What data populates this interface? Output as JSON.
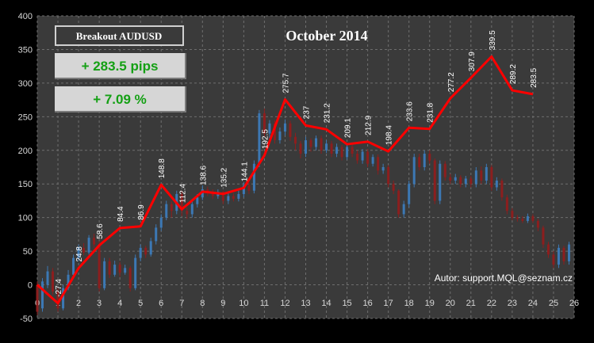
{
  "panel": {
    "label": "Breakout AUDUSD",
    "pips": "+ 283.5 pips",
    "percent": "+ 7.09 %"
  },
  "author_text": "Autor:  support.MQL@seznam.cz",
  "colors": {
    "background": "#000000",
    "plot_area": "#3a3a3a",
    "grid": "#6e6e6e",
    "line": "#ff0000",
    "bull_candle": "#3c78b4",
    "bear_candle": "#8c1e1e",
    "value_text": "#14a014"
  },
  "chart_data": {
    "type": "line",
    "title": "October 2014",
    "xlabel": "",
    "ylabel": "",
    "xlim": [
      0,
      26
    ],
    "ylim": [
      -50,
      400
    ],
    "x_ticks": [
      0,
      1,
      2,
      3,
      4,
      5,
      6,
      7,
      8,
      9,
      10,
      11,
      12,
      13,
      14,
      15,
      16,
      17,
      18,
      19,
      20,
      21,
      22,
      23,
      24,
      25,
      26
    ],
    "y_ticks": [
      -50,
      0,
      50,
      100,
      150,
      200,
      250,
      300,
      350,
      400
    ],
    "grid": true,
    "legend": "none",
    "series": [
      {
        "x": [
          0,
          1,
          2,
          3,
          4,
          5,
          6,
          7,
          8,
          9,
          10,
          11,
          12,
          13,
          14,
          15,
          16,
          17,
          18,
          19,
          20,
          21,
          22,
          23,
          24
        ],
        "values": [
          0,
          -27.4,
          24.8,
          58.6,
          84.4,
          86.9,
          148.8,
          112.4,
          138.6,
          135.2,
          144.1,
          192.5,
          275.7,
          237,
          231.2,
          209.1,
          212.9,
          198.4,
          233.6,
          231.8,
          277.2,
          307.9,
          339.5,
          289.2,
          283.5
        ],
        "labels": [
          "",
          "-27.4",
          "24.8",
          "58.6",
          "84.4",
          "86.9",
          "148.8",
          "112.4",
          "138.6",
          "135.2",
          "144.1",
          "192.5",
          "275.7",
          "237",
          "231.2",
          "209.1",
          "212.9",
          "198.4",
          "233.6",
          "231.8",
          "277.2",
          "307.9",
          "339.5",
          "289.2",
          "283.5"
        ]
      }
    ],
    "candles": [
      {
        "x": 0.0,
        "o": 0,
        "c": -40,
        "h": 5,
        "l": -45
      },
      {
        "x": 0.25,
        "o": -35,
        "c": 5,
        "h": 10,
        "l": -40
      },
      {
        "x": 0.5,
        "o": 0,
        "c": 20,
        "h": 28,
        "l": -5
      },
      {
        "x": 0.75,
        "o": 20,
        "c": -10,
        "h": 25,
        "l": -15
      },
      {
        "x": 1.0,
        "o": -10,
        "c": -35,
        "h": -5,
        "l": -40
      },
      {
        "x": 1.25,
        "o": -35,
        "c": -5,
        "h": 0,
        "l": -38
      },
      {
        "x": 1.5,
        "o": -5,
        "c": 15,
        "h": 22,
        "l": -8
      },
      {
        "x": 1.75,
        "o": 15,
        "c": 40,
        "h": 45,
        "l": 12
      },
      {
        "x": 2.0,
        "o": 40,
        "c": 55,
        "h": 60,
        "l": 35
      },
      {
        "x": 2.25,
        "o": 55,
        "c": 48,
        "h": 62,
        "l": 44
      },
      {
        "x": 2.5,
        "o": 48,
        "c": 70,
        "h": 74,
        "l": 45
      },
      {
        "x": 2.75,
        "o": 70,
        "c": 60,
        "h": 76,
        "l": 55
      },
      {
        "x": 3.0,
        "o": 60,
        "c": -5,
        "h": 65,
        "l": -10
      },
      {
        "x": 3.25,
        "o": -5,
        "c": 35,
        "h": 40,
        "l": -8
      },
      {
        "x": 3.5,
        "o": 35,
        "c": 15,
        "h": 40,
        "l": 10
      },
      {
        "x": 3.75,
        "o": 15,
        "c": 30,
        "h": 36,
        "l": 12
      },
      {
        "x": 4.0,
        "o": 30,
        "c": 18,
        "h": 34,
        "l": 12
      },
      {
        "x": 4.25,
        "o": 18,
        "c": 25,
        "h": 30,
        "l": 15
      },
      {
        "x": 4.5,
        "o": 25,
        "c": -5,
        "h": 28,
        "l": -10
      },
      {
        "x": 4.75,
        "o": -5,
        "c": 40,
        "h": 45,
        "l": -8
      },
      {
        "x": 5.0,
        "o": 40,
        "c": 55,
        "h": 60,
        "l": 35
      },
      {
        "x": 5.25,
        "o": 55,
        "c": 45,
        "h": 58,
        "l": 40
      },
      {
        "x": 5.5,
        "o": 45,
        "c": 65,
        "h": 70,
        "l": 42
      },
      {
        "x": 5.75,
        "o": 65,
        "c": 85,
        "h": 90,
        "l": 60
      },
      {
        "x": 6.0,
        "o": 85,
        "c": 100,
        "h": 105,
        "l": 80
      },
      {
        "x": 6.25,
        "o": 100,
        "c": 120,
        "h": 125,
        "l": 96
      },
      {
        "x": 6.5,
        "o": 120,
        "c": 110,
        "h": 124,
        "l": 100
      },
      {
        "x": 6.75,
        "o": 110,
        "c": 135,
        "h": 140,
        "l": 105
      },
      {
        "x": 7.0,
        "o": 135,
        "c": 110,
        "h": 140,
        "l": 102
      },
      {
        "x": 7.25,
        "o": 110,
        "c": 105,
        "h": 115,
        "l": 98
      },
      {
        "x": 7.5,
        "o": 105,
        "c": 120,
        "h": 125,
        "l": 100
      },
      {
        "x": 7.75,
        "o": 120,
        "c": 130,
        "h": 135,
        "l": 115
      },
      {
        "x": 8.0,
        "o": 130,
        "c": 142,
        "h": 148,
        "l": 126
      },
      {
        "x": 8.25,
        "o": 142,
        "c": 138,
        "h": 146,
        "l": 132
      },
      {
        "x": 8.5,
        "o": 138,
        "c": 132,
        "h": 142,
        "l": 128
      },
      {
        "x": 8.75,
        "o": 132,
        "c": 138,
        "h": 142,
        "l": 128
      },
      {
        "x": 9.0,
        "o": 138,
        "c": 125,
        "h": 140,
        "l": 120
      },
      {
        "x": 9.25,
        "o": 125,
        "c": 132,
        "h": 136,
        "l": 120
      },
      {
        "x": 9.5,
        "o": 132,
        "c": 128,
        "h": 136,
        "l": 124
      },
      {
        "x": 9.75,
        "o": 128,
        "c": 135,
        "h": 140,
        "l": 124
      },
      {
        "x": 10.0,
        "o": 135,
        "c": 148,
        "h": 152,
        "l": 130
      },
      {
        "x": 10.25,
        "o": 148,
        "c": 140,
        "h": 152,
        "l": 135
      },
      {
        "x": 10.5,
        "o": 140,
        "c": 180,
        "h": 185,
        "l": 136
      },
      {
        "x": 10.75,
        "o": 180,
        "c": 255,
        "h": 260,
        "l": 175
      },
      {
        "x": 11.0,
        "o": 255,
        "c": 225,
        "h": 262,
        "l": 220
      },
      {
        "x": 11.25,
        "o": 225,
        "c": 240,
        "h": 245,
        "l": 218
      },
      {
        "x": 11.5,
        "o": 240,
        "c": 215,
        "h": 245,
        "l": 210
      },
      {
        "x": 11.75,
        "o": 215,
        "c": 228,
        "h": 234,
        "l": 210
      },
      {
        "x": 12.0,
        "o": 228,
        "c": 240,
        "h": 246,
        "l": 222
      },
      {
        "x": 12.25,
        "o": 240,
        "c": 220,
        "h": 244,
        "l": 214
      },
      {
        "x": 12.5,
        "o": 220,
        "c": 210,
        "h": 226,
        "l": 200
      },
      {
        "x": 12.75,
        "o": 210,
        "c": 195,
        "h": 214,
        "l": 188
      },
      {
        "x": 13.0,
        "o": 195,
        "c": 215,
        "h": 220,
        "l": 190
      },
      {
        "x": 13.25,
        "o": 215,
        "c": 205,
        "h": 218,
        "l": 198
      },
      {
        "x": 13.5,
        "o": 205,
        "c": 218,
        "h": 222,
        "l": 200
      },
      {
        "x": 13.75,
        "o": 218,
        "c": 200,
        "h": 222,
        "l": 195
      },
      {
        "x": 14.0,
        "o": 200,
        "c": 210,
        "h": 215,
        "l": 196
      },
      {
        "x": 14.25,
        "o": 210,
        "c": 195,
        "h": 214,
        "l": 190
      },
      {
        "x": 14.5,
        "o": 195,
        "c": 205,
        "h": 210,
        "l": 190
      },
      {
        "x": 14.75,
        "o": 205,
        "c": 190,
        "h": 208,
        "l": 185
      },
      {
        "x": 15.0,
        "o": 190,
        "c": 205,
        "h": 210,
        "l": 186
      },
      {
        "x": 15.25,
        "o": 205,
        "c": 195,
        "h": 208,
        "l": 190
      },
      {
        "x": 15.5,
        "o": 195,
        "c": 185,
        "h": 200,
        "l": 180
      },
      {
        "x": 15.75,
        "o": 185,
        "c": 198,
        "h": 202,
        "l": 180
      },
      {
        "x": 16.0,
        "o": 198,
        "c": 180,
        "h": 202,
        "l": 175
      },
      {
        "x": 16.25,
        "o": 180,
        "c": 190,
        "h": 194,
        "l": 176
      },
      {
        "x": 16.5,
        "o": 190,
        "c": 170,
        "h": 194,
        "l": 164
      },
      {
        "x": 16.75,
        "o": 170,
        "c": 175,
        "h": 180,
        "l": 165
      },
      {
        "x": 17.0,
        "o": 175,
        "c": 150,
        "h": 178,
        "l": 145
      },
      {
        "x": 17.25,
        "o": 150,
        "c": 140,
        "h": 155,
        "l": 135
      },
      {
        "x": 17.5,
        "o": 140,
        "c": 105,
        "h": 142,
        "l": 100
      },
      {
        "x": 17.75,
        "o": 105,
        "c": 120,
        "h": 125,
        "l": 100
      },
      {
        "x": 18.0,
        "o": 120,
        "c": 150,
        "h": 155,
        "l": 115
      },
      {
        "x": 18.25,
        "o": 150,
        "c": 190,
        "h": 195,
        "l": 145
      },
      {
        "x": 18.5,
        "o": 190,
        "c": 175,
        "h": 195,
        "l": 170
      },
      {
        "x": 18.75,
        "o": 175,
        "c": 195,
        "h": 200,
        "l": 170
      },
      {
        "x": 19.0,
        "o": 195,
        "c": 185,
        "h": 200,
        "l": 180
      },
      {
        "x": 19.25,
        "o": 185,
        "c": 125,
        "h": 188,
        "l": 120
      },
      {
        "x": 19.5,
        "o": 125,
        "c": 180,
        "h": 185,
        "l": 120
      },
      {
        "x": 19.75,
        "o": 180,
        "c": 160,
        "h": 184,
        "l": 155
      },
      {
        "x": 20.0,
        "o": 160,
        "c": 155,
        "h": 165,
        "l": 150
      },
      {
        "x": 20.25,
        "o": 155,
        "c": 160,
        "h": 165,
        "l": 150
      },
      {
        "x": 20.5,
        "o": 160,
        "c": 150,
        "h": 163,
        "l": 145
      },
      {
        "x": 20.75,
        "o": 150,
        "c": 158,
        "h": 162,
        "l": 145
      },
      {
        "x": 21.0,
        "o": 158,
        "c": 150,
        "h": 162,
        "l": 145
      },
      {
        "x": 21.25,
        "o": 150,
        "c": 170,
        "h": 175,
        "l": 145
      },
      {
        "x": 21.5,
        "o": 170,
        "c": 155,
        "h": 176,
        "l": 150
      },
      {
        "x": 21.75,
        "o": 155,
        "c": 175,
        "h": 180,
        "l": 150
      },
      {
        "x": 22.0,
        "o": 175,
        "c": 145,
        "h": 178,
        "l": 140
      },
      {
        "x": 22.25,
        "o": 145,
        "c": 155,
        "h": 160,
        "l": 140
      },
      {
        "x": 22.5,
        "o": 155,
        "c": 130,
        "h": 158,
        "l": 125
      },
      {
        "x": 22.75,
        "o": 130,
        "c": 110,
        "h": 134,
        "l": 105
      },
      {
        "x": 23.0,
        "o": 110,
        "c": 100,
        "h": 114,
        "l": 96
      },
      {
        "x": 23.25,
        "o": 100,
        "c": 98,
        "h": 104,
        "l": 94
      },
      {
        "x": 23.5,
        "o": 98,
        "c": 95,
        "h": 102,
        "l": 92
      },
      {
        "x": 23.75,
        "o": 95,
        "c": 102,
        "h": 106,
        "l": 92
      },
      {
        "x": 24.0,
        "o": 102,
        "c": 95,
        "h": 105,
        "l": 92
      },
      {
        "x": 24.25,
        "o": 95,
        "c": 85,
        "h": 98,
        "l": 80
      },
      {
        "x": 24.5,
        "o": 85,
        "c": 60,
        "h": 88,
        "l": 55
      },
      {
        "x": 24.75,
        "o": 60,
        "c": 45,
        "h": 64,
        "l": 40
      },
      {
        "x": 25.0,
        "o": 45,
        "c": 30,
        "h": 50,
        "l": 25
      },
      {
        "x": 25.25,
        "o": 30,
        "c": 55,
        "h": 60,
        "l": 25
      },
      {
        "x": 25.5,
        "o": 55,
        "c": 35,
        "h": 58,
        "l": 30
      },
      {
        "x": 25.75,
        "o": 35,
        "c": 60,
        "h": 64,
        "l": 30
      }
    ]
  }
}
